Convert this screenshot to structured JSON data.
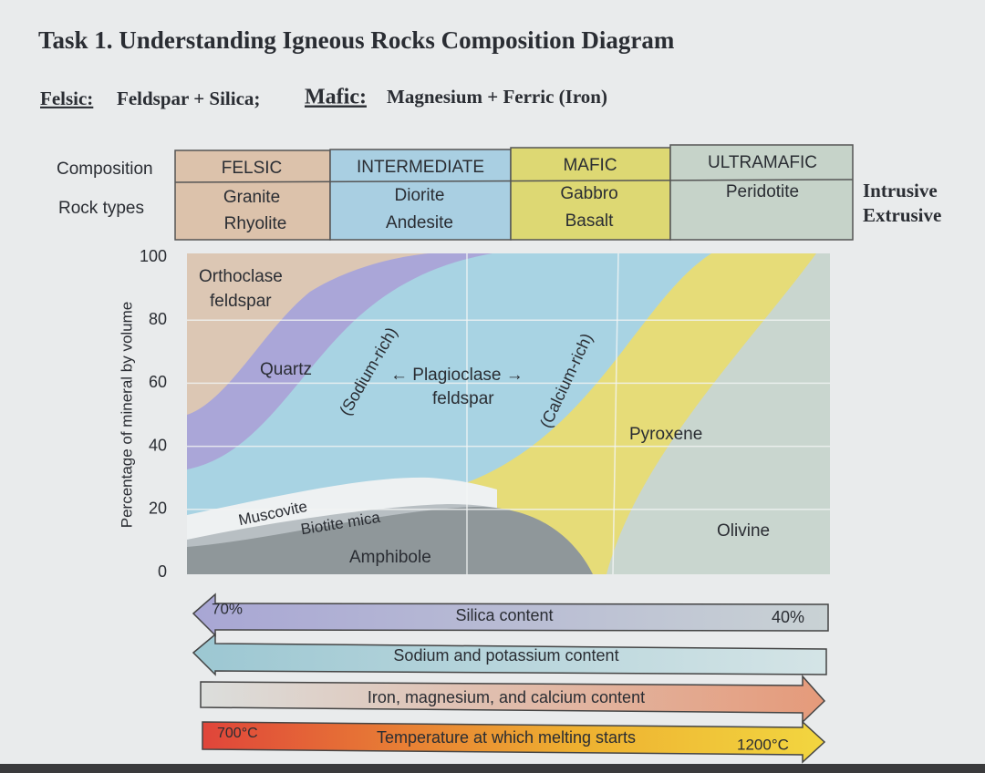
{
  "header": {
    "title": "Task 1. Understanding Igneous Rocks Composition Diagram",
    "subtitle": {
      "felsic_label": "Felsic:",
      "felsic_text": "Feldspar + Silica;",
      "mafic_label": "Mafic:",
      "mafic_text": "Magnesium + Ferric (Iron)"
    }
  },
  "table": {
    "row_labels": [
      "Composition",
      "Rock types"
    ],
    "columns": [
      {
        "composition": "FELSIC",
        "rocks": [
          "Granite",
          "Rhyolite"
        ]
      },
      {
        "composition": "INTERMEDIATE",
        "rocks": [
          "Diorite",
          "Andesite"
        ]
      },
      {
        "composition": "MAFIC",
        "rocks": [
          "Gabbro",
          "Basalt"
        ]
      },
      {
        "composition": "ULTRAMAFIC",
        "rocks": [
          "Peridotite"
        ]
      }
    ],
    "right_labels": [
      "Intrusive",
      "Extrusive"
    ]
  },
  "chart": {
    "axis_label": "Percentage of mineral by volume",
    "ticks": [
      100,
      80,
      60,
      40,
      20,
      0
    ],
    "minerals": {
      "orthoclase": [
        "Orthoclase",
        "feldspar"
      ],
      "quartz": "Quartz",
      "sodium": "(Sodium-rich)",
      "plagioclase": [
        "← Plagioclase →",
        "feldspar"
      ],
      "calcium": "(Calcium-rich)",
      "pyroxene": "Pyroxene",
      "olivine": "Olivine",
      "muscovite": "Muscovite",
      "biotite": "Biotite mica",
      "amphibole": "Amphibole"
    }
  },
  "arrows": [
    {
      "text": "Silica content",
      "left": "70%",
      "right": "40%"
    },
    {
      "text": "Sodium and potassium content"
    },
    {
      "text": "Iron, magnesium, and calcium content"
    },
    {
      "text": "Temperature at which melting starts",
      "left": "700°C",
      "right": "1200°C"
    }
  ]
}
